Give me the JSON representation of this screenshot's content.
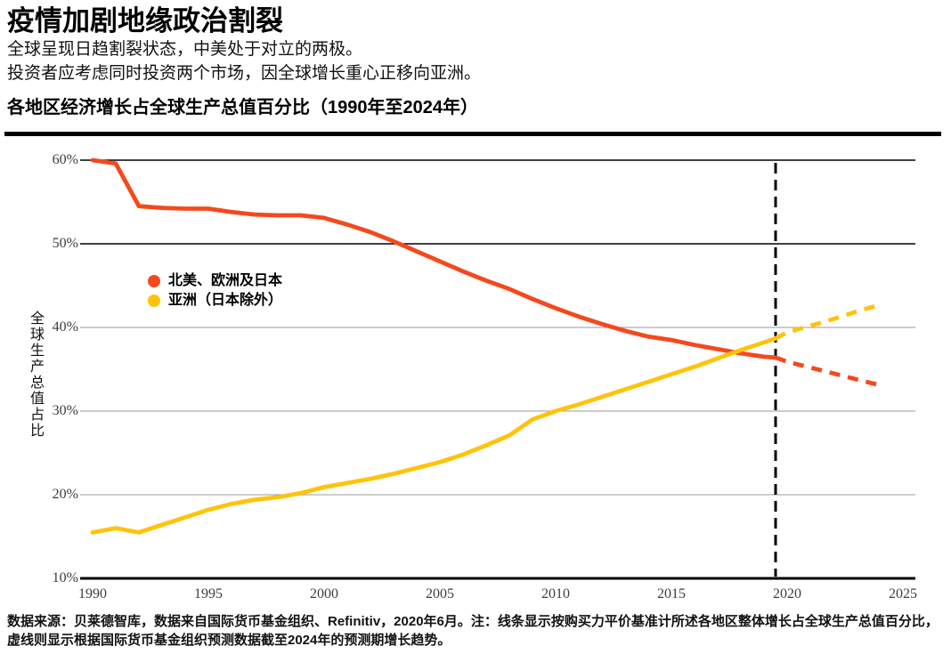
{
  "header": {
    "title": "疫情加剧地缘政治割裂",
    "subtitle_line1": "全球呈现日趋割裂状态，中美处于对立的两极。",
    "subtitle_line2": "投资者应考虑同时投资两个市场，因全球增长重心正移向亚洲。",
    "chart_heading": "各地区经济增长占全球生产总值百分比（1990年至2024年）"
  },
  "footer": {
    "text": "数据来源：贝莱德智库，数据来自国际货币基金组织、Refinitiv，2020年6月。注：线条显示按购买力平价基准计所述各地区整体增长占全球生产总值百分比，虚线则显示根据国际货币基金组织预测数据截至2024年的预测期增长趋势。"
  },
  "chart_data": {
    "type": "line",
    "title": "各地区经济增长占全球生产总值百分比（1990年至2024年）",
    "xlabel": "",
    "ylabel": "全球生产总值占比",
    "ylim": [
      10,
      60
    ],
    "yticks": [
      60,
      50,
      40,
      30,
      20,
      10
    ],
    "ytick_labels": [
      "60%",
      "50%",
      "40%",
      "30%",
      "20%",
      "10%"
    ],
    "xticks": [
      1990,
      1995,
      2000,
      2005,
      2010,
      2015,
      2020,
      2025
    ],
    "xlim": [
      1990,
      2025
    ],
    "grid": "horizontal",
    "legend_position": "upper-left-inside",
    "forecast_divider_year": 2019.5,
    "divider_color": "#000000",
    "grid_light_color": "#999999",
    "grid_dark_color": "#000000",
    "tick_text_color": "#3d3d3d",
    "x": [
      1990,
      1991,
      1992,
      1993,
      1994,
      1995,
      1996,
      1997,
      1998,
      1999,
      2000,
      2001,
      2002,
      2003,
      2004,
      2005,
      2006,
      2007,
      2008,
      2009,
      2010,
      2011,
      2012,
      2013,
      2014,
      2015,
      2016,
      2017,
      2018,
      2019,
      2019.5,
      2020,
      2021,
      2022,
      2023,
      2024
    ],
    "solid_until": 2019.5,
    "series": [
      {
        "name": "北美、欧洲及日本",
        "color": "#F4491D",
        "values": [
          60.0,
          59.6,
          54.5,
          54.3,
          54.2,
          54.2,
          53.8,
          53.5,
          53.4,
          53.4,
          53.1,
          52.3,
          51.4,
          50.3,
          49.1,
          47.9,
          46.7,
          45.6,
          44.6,
          43.4,
          42.3,
          41.3,
          40.4,
          39.6,
          38.9,
          38.5,
          37.9,
          37.4,
          36.9,
          36.5,
          36.4,
          35.9,
          35.2,
          34.5,
          33.8,
          33.1
        ]
      },
      {
        "name": "亚洲（日本除外）",
        "color": "#FFC30B",
        "values": [
          15.5,
          16.0,
          15.5,
          16.4,
          17.3,
          18.2,
          18.9,
          19.4,
          19.7,
          20.2,
          20.9,
          21.4,
          21.9,
          22.5,
          23.2,
          23.9,
          24.8,
          25.9,
          27.1,
          29.0,
          30.0,
          30.8,
          31.7,
          32.6,
          33.5,
          34.4,
          35.3,
          36.3,
          37.3,
          38.2,
          38.7,
          39.4,
          40.2,
          41.0,
          41.9,
          42.7
        ]
      }
    ]
  }
}
